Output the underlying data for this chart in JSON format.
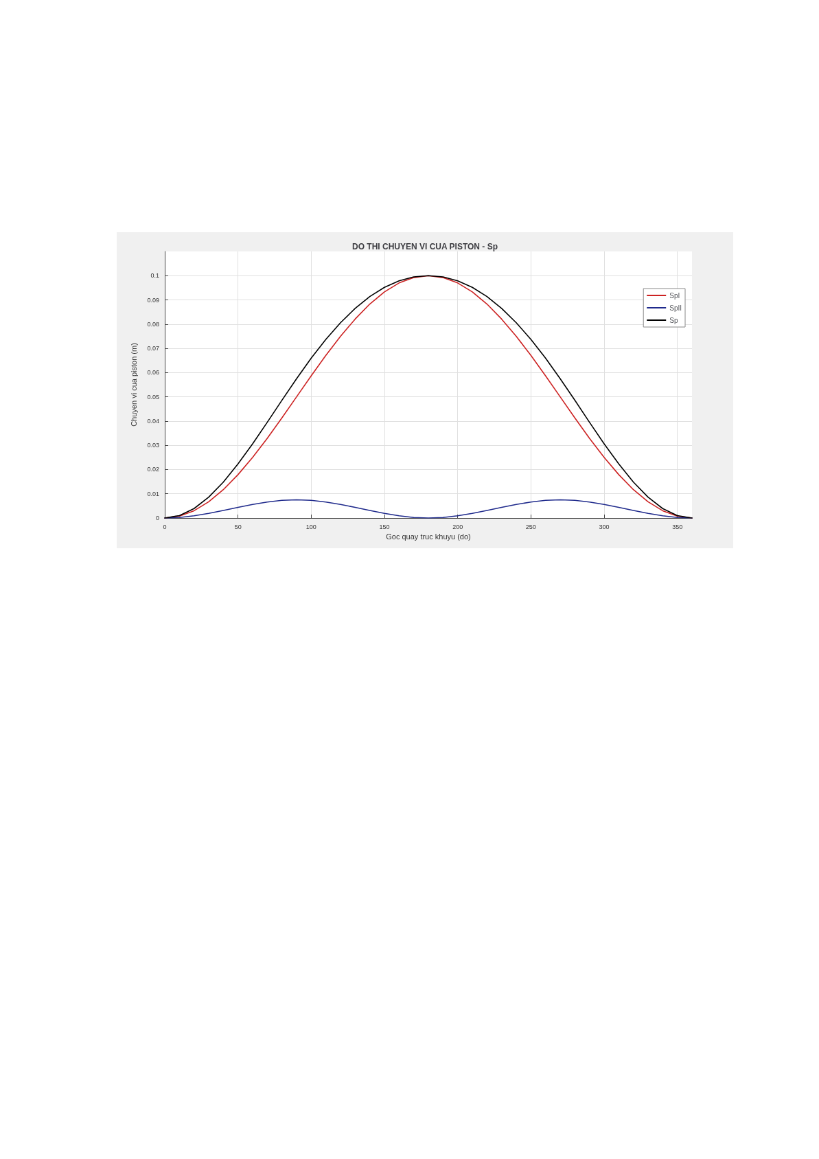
{
  "chart_data": {
    "type": "line",
    "title": "DO THI CHUYEN VI CUA PISTON - Sp",
    "xlabel": "Goc quay truc khuyu (do)",
    "ylabel": "Chuyen vi cua piston (m)",
    "x": [
      0,
      10,
      20,
      30,
      40,
      50,
      60,
      70,
      80,
      90,
      100,
      110,
      120,
      130,
      140,
      150,
      160,
      170,
      180,
      190,
      200,
      210,
      220,
      230,
      240,
      250,
      260,
      270,
      280,
      290,
      300,
      310,
      320,
      330,
      340,
      350,
      360
    ],
    "series": [
      {
        "name": "SpI",
        "color": "#cc2222",
        "values": [
          0,
          0.0008,
          0.003,
          0.0067,
          0.0117,
          0.0179,
          0.025,
          0.0329,
          0.0413,
          0.05,
          0.0587,
          0.0671,
          0.075,
          0.0821,
          0.0883,
          0.0933,
          0.097,
          0.0992,
          0.1,
          0.0992,
          0.097,
          0.0933,
          0.0883,
          0.0821,
          0.075,
          0.0671,
          0.0587,
          0.05,
          0.0413,
          0.0329,
          0.025,
          0.0179,
          0.0117,
          0.0067,
          0.003,
          0.0008,
          0
        ]
      },
      {
        "name": "SpII",
        "color": "#1f2a8c",
        "values": [
          0,
          0.0002,
          0.0009,
          0.0019,
          0.0031,
          0.0044,
          0.0056,
          0.0066,
          0.0073,
          0.0075,
          0.0073,
          0.0066,
          0.0056,
          0.0044,
          0.0031,
          0.0019,
          0.0009,
          0.0002,
          0,
          0.0002,
          0.0009,
          0.0019,
          0.0031,
          0.0044,
          0.0056,
          0.0066,
          0.0073,
          0.0075,
          0.0073,
          0.0066,
          0.0056,
          0.0044,
          0.0031,
          0.0019,
          0.0009,
          0.0002,
          0
        ]
      },
      {
        "name": "Sp",
        "color": "#000000",
        "values": [
          0,
          0.001,
          0.0039,
          0.0086,
          0.0148,
          0.0223,
          0.0306,
          0.0395,
          0.0486,
          0.0575,
          0.066,
          0.0737,
          0.0806,
          0.0865,
          0.0914,
          0.0952,
          0.0979,
          0.0995,
          0.1,
          0.0995,
          0.0979,
          0.0952,
          0.0914,
          0.0865,
          0.0806,
          0.0737,
          0.066,
          0.0575,
          0.0486,
          0.0395,
          0.0306,
          0.0223,
          0.0148,
          0.0086,
          0.0039,
          0.001,
          0
        ]
      }
    ],
    "xlim": [
      0,
      360
    ],
    "xticks": [
      0,
      50,
      100,
      150,
      200,
      250,
      300,
      350
    ],
    "ylim": [
      0,
      0.11
    ],
    "yticks": [
      0,
      0.01,
      0.02,
      0.03,
      0.04,
      0.05,
      0.06,
      0.07,
      0.08,
      0.09,
      0.1
    ],
    "grid": true,
    "legend": "top right",
    "marker": "none",
    "line_style": "solid"
  }
}
